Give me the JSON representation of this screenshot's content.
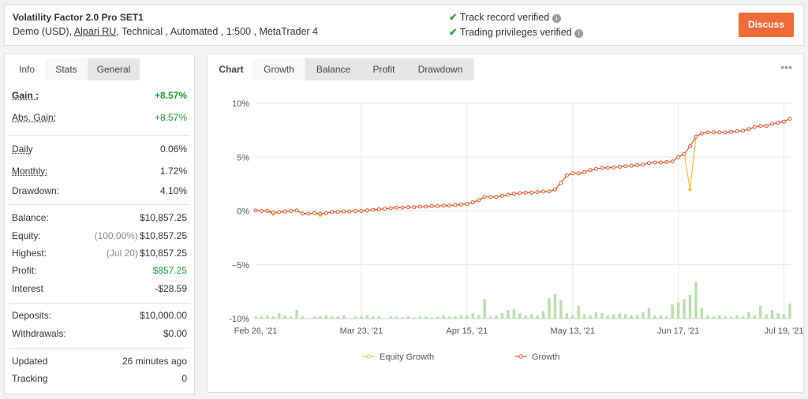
{
  "header": {
    "title": "Volatility Factor 2.0 Pro SET1",
    "account": "Demo (USD),",
    "broker": "Alpari RU",
    "details": ", Technical , Automated , 1:500 , MetaTrader 4",
    "verified": [
      "Track record verified",
      "Trading privileges verified"
    ],
    "button": "Discuss"
  },
  "left_tabs": [
    "Info",
    "Stats",
    "General"
  ],
  "stats": {
    "groups": [
      {
        "rows": [
          {
            "label": "Gain :",
            "value": "+8.57%",
            "color": "#1a9c33"
          },
          {
            "label": "Abs. Gain:",
            "value": "+8.57%",
            "color": "#1a9c33"
          }
        ]
      },
      {
        "rows": [
          {
            "label": "Daily",
            "value": "0.06%"
          },
          {
            "label": "Monthly:",
            "value": "1.72%"
          },
          {
            "label": "Drawdown:",
            "value": "4.10%"
          }
        ]
      },
      {
        "rows": [
          {
            "label": "Balance:",
            "value": "$10,857.25"
          },
          {
            "label": "Equity:",
            "note": "(100.00%)",
            "value": "$10,857.25"
          },
          {
            "label": "Highest:",
            "note": "(Jul 20)",
            "value": "$10,857.25"
          },
          {
            "label": "Profit:",
            "value": "$857.25",
            "color": "#1a9c33"
          },
          {
            "label": "Interest",
            "value": "-$28.59"
          }
        ]
      },
      {
        "rows": [
          {
            "label": "Deposits:",
            "value": "$10,000.00"
          },
          {
            "label": "Withdrawals:",
            "value": "$0.00"
          }
        ]
      },
      {
        "rows": [
          {
            "label": "Updated",
            "value": "26 minutes ago"
          },
          {
            "label": "Tracking",
            "value": "0"
          }
        ]
      }
    ]
  },
  "chart_tabs": [
    "Chart",
    "Growth",
    "Balance",
    "Profit",
    "Drawdown"
  ],
  "chart_data": {
    "type": "line",
    "grid": true,
    "legend": "bottom",
    "categories": [
      "Feb 26, '21",
      null,
      null,
      null,
      null,
      null,
      null,
      null,
      null,
      null,
      null,
      null,
      null,
      null,
      null,
      null,
      null,
      null,
      "Mar 23, '21",
      null,
      null,
      null,
      null,
      null,
      null,
      null,
      null,
      null,
      null,
      null,
      null,
      null,
      null,
      null,
      null,
      null,
      "Apr 15, '21",
      null,
      null,
      null,
      null,
      null,
      null,
      null,
      null,
      null,
      null,
      null,
      null,
      null,
      null,
      null,
      null,
      null,
      "May 13, '21",
      null,
      null,
      null,
      null,
      null,
      null,
      null,
      null,
      null,
      null,
      null,
      null,
      null,
      null,
      null,
      null,
      null,
      "Jun 17, '21",
      null,
      null,
      null,
      null,
      null,
      null,
      null,
      null,
      null,
      null,
      null,
      null,
      null,
      null,
      null,
      null,
      null,
      "Jul 19, '21",
      null
    ],
    "ylim": [
      -10,
      10
    ],
    "yticks": [
      {
        "value": -10,
        "label": "-10%"
      },
      {
        "value": -5,
        "label": "−5%"
      },
      {
        "value": 0,
        "label": "0%"
      },
      {
        "value": 5,
        "label": "5%"
      },
      {
        "value": 10,
        "label": "10%"
      }
    ],
    "series": [
      {
        "name": "Equity Growth",
        "color": "#f5bf32",
        "values": [
          0.05,
          0.0,
          0.0,
          -0.3,
          -0.1,
          -0.05,
          0.0,
          0.05,
          -0.25,
          -0.25,
          -0.2,
          -0.4,
          -0.2,
          -0.1,
          -0.1,
          -0.05,
          -0.05,
          0.0,
          0.0,
          0.05,
          0.1,
          0.15,
          0.2,
          0.25,
          0.3,
          0.3,
          0.35,
          0.35,
          0.4,
          0.4,
          0.45,
          0.45,
          0.5,
          0.5,
          0.55,
          0.6,
          0.65,
          0.8,
          1.0,
          1.3,
          1.3,
          1.3,
          1.4,
          1.5,
          1.6,
          1.65,
          1.7,
          1.7,
          1.75,
          1.8,
          1.8,
          2.0,
          2.6,
          3.3,
          3.5,
          3.5,
          3.6,
          3.8,
          3.9,
          4.0,
          4.0,
          4.05,
          4.1,
          4.15,
          4.2,
          4.25,
          4.3,
          4.45,
          4.5,
          4.5,
          4.55,
          4.6,
          5.0,
          5.3,
          2.0,
          6.9,
          7.2,
          7.3,
          7.3,
          7.3,
          7.3,
          7.35,
          7.4,
          7.45,
          7.6,
          7.8,
          7.9,
          7.9,
          8.1,
          8.2,
          8.3,
          8.57
        ]
      },
      {
        "name": "Growth",
        "color": "#e8522b",
        "values": [
          0.05,
          0.0,
          0.0,
          -0.15,
          -0.1,
          -0.05,
          0.0,
          0.05,
          -0.25,
          -0.25,
          -0.2,
          -0.25,
          -0.2,
          -0.1,
          -0.1,
          -0.05,
          -0.05,
          0.0,
          0.0,
          0.05,
          0.1,
          0.15,
          0.2,
          0.25,
          0.3,
          0.3,
          0.35,
          0.35,
          0.4,
          0.4,
          0.45,
          0.45,
          0.5,
          0.5,
          0.55,
          0.6,
          0.65,
          0.8,
          1.0,
          1.3,
          1.3,
          1.3,
          1.4,
          1.5,
          1.6,
          1.65,
          1.7,
          1.7,
          1.75,
          1.8,
          1.8,
          2.0,
          2.6,
          3.3,
          3.5,
          3.5,
          3.6,
          3.8,
          3.9,
          4.0,
          4.0,
          4.05,
          4.1,
          4.15,
          4.2,
          4.25,
          4.3,
          4.45,
          4.5,
          4.5,
          4.55,
          4.6,
          5.0,
          5.3,
          6.0,
          6.9,
          7.2,
          7.3,
          7.3,
          7.3,
          7.3,
          7.35,
          7.4,
          7.45,
          7.6,
          7.8,
          7.9,
          7.9,
          8.1,
          8.2,
          8.3,
          8.57
        ]
      }
    ],
    "bars": {
      "color": "#b8e0a8",
      "values": [
        0.2,
        0.2,
        0.3,
        0.2,
        0.5,
        0.3,
        0.2,
        0.8,
        0.2,
        null,
        0.2,
        0.2,
        0.3,
        0.2,
        0.2,
        0.3,
        null,
        0.2,
        0.2,
        0.3,
        0.2,
        0.2,
        null,
        0.2,
        0.2,
        0.1,
        0.2,
        0.1,
        0.2,
        0.2,
        0.1,
        0.2,
        0.3,
        0.2,
        0.2,
        0.3,
        0.3,
        0.5,
        0.3,
        1.8,
        0.2,
        0.3,
        0.5,
        0.8,
        0.9,
        0.5,
        0.3,
        0.4,
        0.3,
        0.7,
        1.9,
        2.3,
        1.7,
        0.5,
        0.3,
        1.2,
        0.4,
        0.3,
        0.6,
        0.5,
        0.3,
        0.4,
        0.5,
        0.4,
        0.3,
        0.3,
        0.6,
        1.0,
        0.3,
        0.3,
        0.2,
        1.3,
        1.5,
        1.8,
        2.2,
        3.4,
        1.0,
        0.3,
        0.2,
        0.3,
        0.2,
        0.2,
        0.3,
        0.2,
        0.6,
        0.3,
        1.2,
        0.4,
        0.8,
        0.5,
        0.4,
        1.4
      ]
    }
  }
}
